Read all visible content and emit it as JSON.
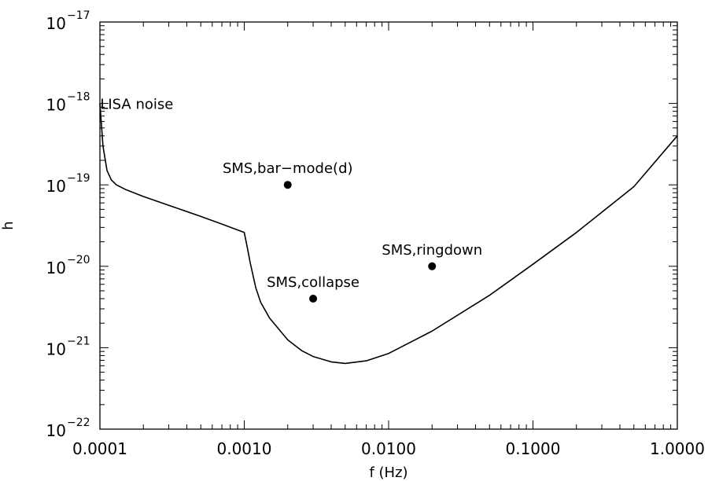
{
  "chart_data": {
    "type": "line",
    "title": "",
    "xlabel": "f (Hz)",
    "ylabel": "h",
    "x_scale": "log",
    "y_scale": "log",
    "xlim": [
      0.0001,
      1.0
    ],
    "ylim": [
      1e-22,
      1e-17
    ],
    "grid": false,
    "x_ticks": [
      {
        "value": 0.0001,
        "label": "0.0001"
      },
      {
        "value": 0.001,
        "label": "0.0010"
      },
      {
        "value": 0.01,
        "label": "0.0100"
      },
      {
        "value": 0.1,
        "label": "0.1000"
      },
      {
        "value": 1.0,
        "label": "1.0000"
      }
    ],
    "y_ticks": [
      {
        "value": 1e-22,
        "base": "10",
        "exponent": "−22"
      },
      {
        "value": 1e-21,
        "base": "10",
        "exponent": "−21"
      },
      {
        "value": 1e-20,
        "base": "10",
        "exponent": "−20"
      },
      {
        "value": 1e-19,
        "base": "10",
        "exponent": "−19"
      },
      {
        "value": 1e-18,
        "base": "10",
        "exponent": "−18"
      },
      {
        "value": 1e-17,
        "base": "10",
        "exponent": "−17"
      }
    ],
    "series": [
      {
        "name": "LISA noise",
        "color": "#000000",
        "points": [
          [
            0.0001,
            1e-18
          ],
          [
            0.000105,
            3e-19
          ],
          [
            0.000112,
            1.5e-19
          ],
          [
            0.00012,
            1.15e-19
          ],
          [
            0.00013,
            1e-19
          ],
          [
            0.00015,
            8.8e-20
          ],
          [
            0.0002,
            7.2e-20
          ],
          [
            0.0003,
            5.6e-20
          ],
          [
            0.0005,
            4.1e-20
          ],
          [
            0.0007,
            3.3e-20
          ],
          [
            0.001,
            2.6e-20
          ],
          [
            0.00105,
            1.7e-20
          ],
          [
            0.0011,
            1.1e-20
          ],
          [
            0.0012,
            5.5e-21
          ],
          [
            0.0013,
            3.6e-21
          ],
          [
            0.0015,
            2.3e-21
          ],
          [
            0.002,
            1.25e-21
          ],
          [
            0.0025,
            9.2e-22
          ],
          [
            0.003,
            7.8e-22
          ],
          [
            0.004,
            6.7e-22
          ],
          [
            0.005,
            6.4e-22
          ],
          [
            0.007,
            6.9e-22
          ],
          [
            0.01,
            8.5e-22
          ],
          [
            0.02,
            1.6e-21
          ],
          [
            0.05,
            4.4e-21
          ],
          [
            0.1,
            1.06e-20
          ],
          [
            0.2,
            2.6e-20
          ],
          [
            0.5,
            9.5e-20
          ],
          [
            1.0,
            4e-19
          ]
        ]
      }
    ],
    "points": [
      {
        "label": "SMS,bar−mode(d)",
        "x": 0.002,
        "y": 1e-19
      },
      {
        "label": "SMS,collapse",
        "x": 0.003,
        "y": 4e-21
      },
      {
        "label": "SMS,ringdown",
        "x": 0.02,
        "y": 1e-20
      }
    ],
    "annotations": [
      {
        "text": "LISA noise",
        "x": 0.00018,
        "y": 1e-18
      }
    ]
  }
}
